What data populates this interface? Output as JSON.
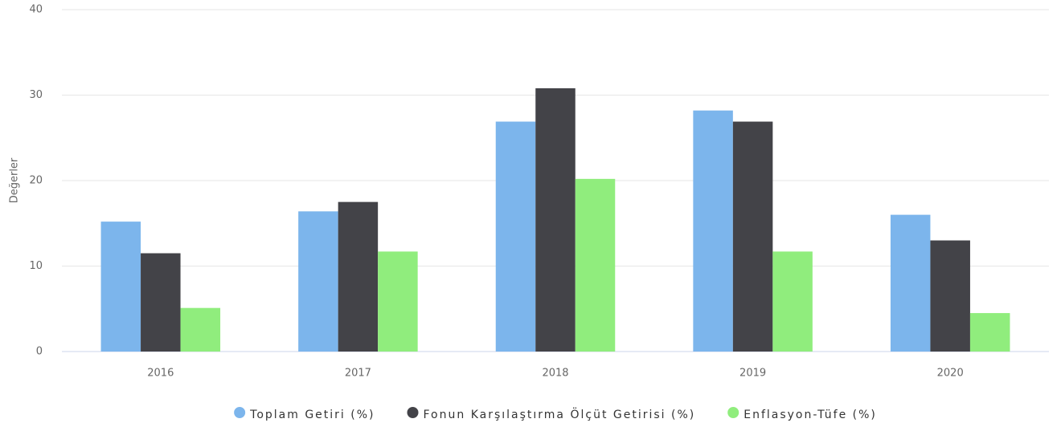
{
  "chart_data": {
    "type": "bar",
    "y_label": "Değerler",
    "categories": [
      "2016",
      "2017",
      "2018",
      "2019",
      "2020"
    ],
    "series": [
      {
        "name": "Toplam Getiri (%)",
        "color": "#7cb5ec",
        "values": [
          15.2,
          16.4,
          26.9,
          28.2,
          16.0
        ]
      },
      {
        "name": "Fonun Karşılaştırma Ölçüt Getirisi (%)",
        "color": "#434348",
        "values": [
          11.5,
          17.5,
          30.8,
          26.9,
          13.0
        ]
      },
      {
        "name": "Enflasyon-Tüfe (%)",
        "color": "#90ed7d",
        "values": [
          5.1,
          11.7,
          20.2,
          11.7,
          4.5
        ]
      }
    ],
    "ylim": [
      0,
      40
    ],
    "yticks": [
      0,
      10,
      20,
      30,
      40
    ],
    "grid": true
  }
}
